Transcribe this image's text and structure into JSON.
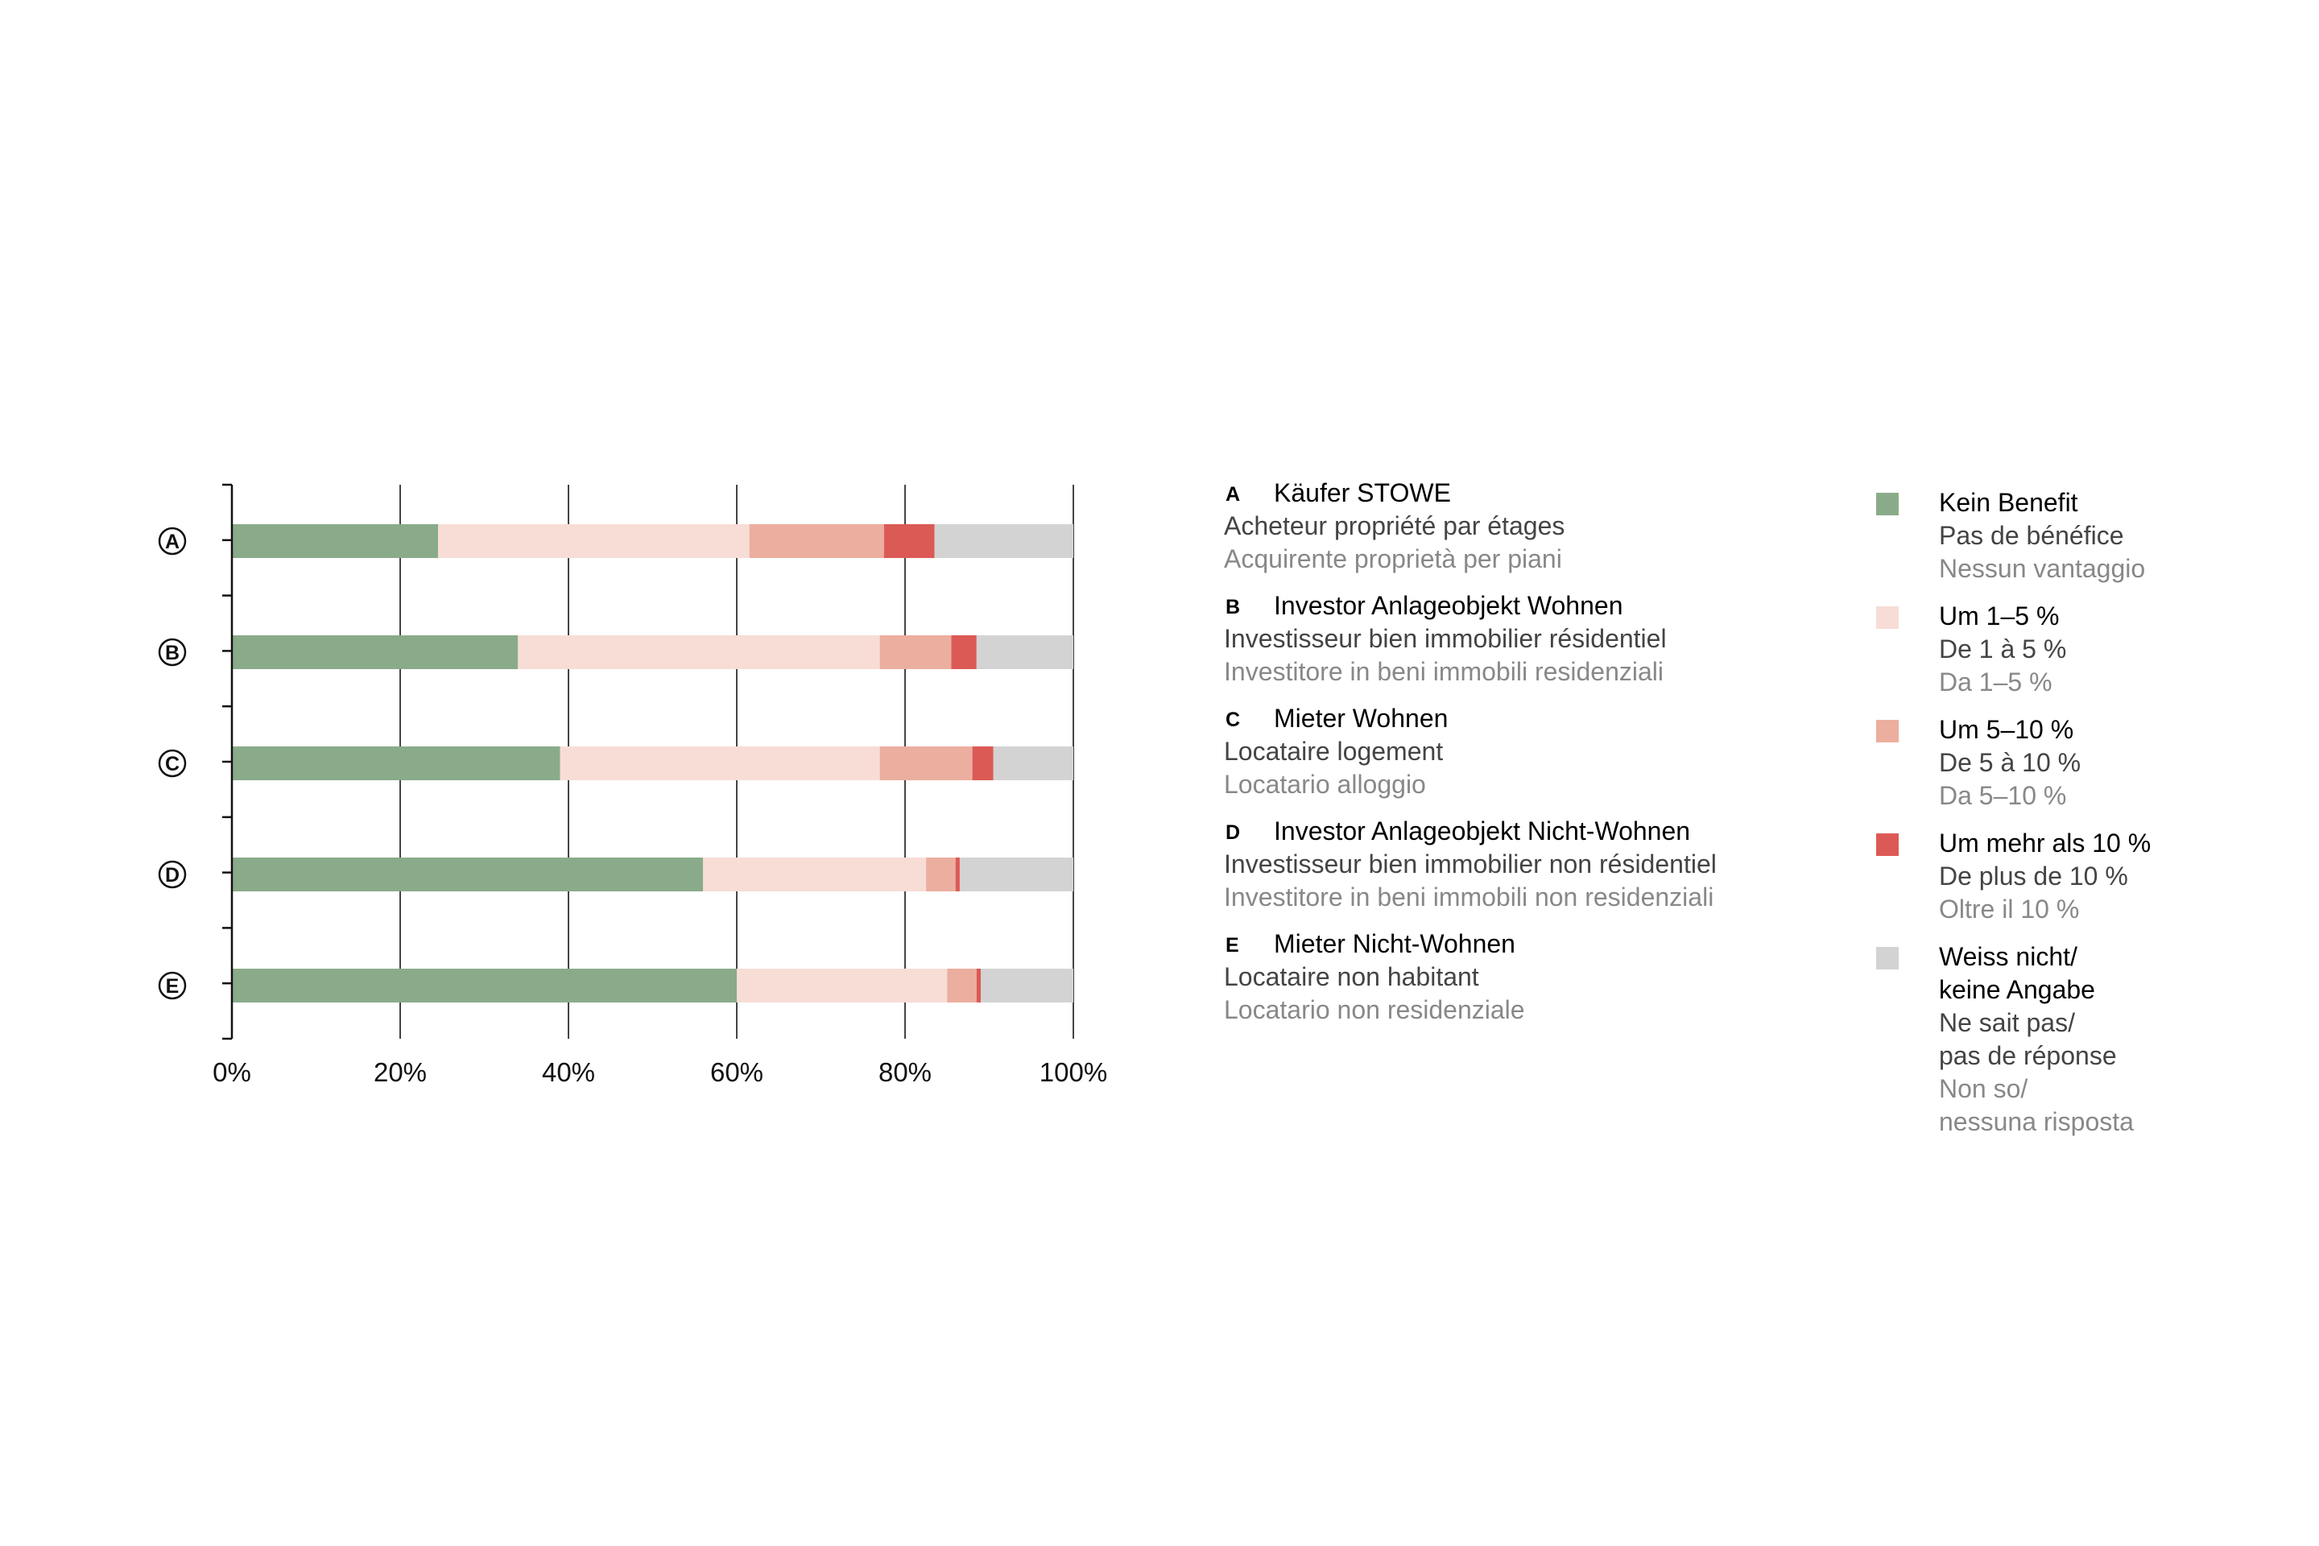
{
  "chart_data": {
    "type": "bar",
    "orientation": "horizontal",
    "stacked": true,
    "categories": [
      "A",
      "B",
      "C",
      "D",
      "E"
    ],
    "series": [
      {
        "name": "Kein Benefit",
        "color": "#8aab8a",
        "values": [
          24.5,
          34.0,
          39.0,
          56.0,
          60.0
        ]
      },
      {
        "name": "Um 1–5 %",
        "color": "#f7ddd6",
        "values": [
          37.0,
          43.0,
          38.0,
          26.5,
          25.0
        ]
      },
      {
        "name": "Um 5–10 %",
        "color": "#ecae9f",
        "values": [
          16.0,
          8.5,
          11.0,
          3.5,
          3.5
        ]
      },
      {
        "name": "Um mehr als 10 %",
        "color": "#dc5a55",
        "values": [
          6.0,
          3.0,
          2.5,
          0.5,
          0.5
        ]
      },
      {
        "name": "Weiss nicht/keine Angabe",
        "color": "#d3d3d3",
        "values": [
          16.5,
          11.5,
          9.5,
          13.5,
          11.0
        ]
      }
    ],
    "xlim": [
      0,
      100
    ],
    "xticks": [
      "0%",
      "20%",
      "40%",
      "60%",
      "80%",
      "100%"
    ],
    "grid": true,
    "legend_position": "right"
  },
  "groups": [
    {
      "letter": "A",
      "de": "Käufer STOWE",
      "fr": "Acheteur propriété par étages",
      "it": "Acquirente proprietà per piani"
    },
    {
      "letter": "B",
      "de": "Investor Anlageobjekt Wohnen",
      "fr": "Investisseur bien immobilier résidentiel",
      "it": "Investitore in beni immobili residenziali"
    },
    {
      "letter": "C",
      "de": "Mieter Wohnen",
      "fr": "Locataire logement",
      "it": "Locatario alloggio"
    },
    {
      "letter": "D",
      "de": "Investor Anlageobjekt Nicht-Wohnen",
      "fr": "Investisseur bien immobilier non résidentiel",
      "it": "Investitore in beni immobili non residenziali"
    },
    {
      "letter": "E",
      "de": "Mieter Nicht-Wohnen",
      "fr": "Locataire non habitant",
      "it": "Locatario non residenziale"
    }
  ],
  "legend": [
    {
      "color": "#8aab8a",
      "de": [
        "Kein Benefit"
      ],
      "fr": [
        "Pas de bénéfice"
      ],
      "it": [
        "Nessun vantaggio"
      ]
    },
    {
      "color": "#f7ddd6",
      "de": [
        "Um 1–5 %"
      ],
      "fr": [
        "De 1 à 5 %"
      ],
      "it": [
        "Da 1–5 %"
      ]
    },
    {
      "color": "#ecae9f",
      "de": [
        "Um 5–10 %"
      ],
      "fr": [
        "De 5 à 10 %"
      ],
      "it": [
        "Da 5–10 %"
      ]
    },
    {
      "color": "#dc5a55",
      "de": [
        "Um mehr als 10 %"
      ],
      "fr": [
        "De plus de 10 %"
      ],
      "it": [
        "Oltre il 10 %"
      ]
    },
    {
      "color": "#d3d3d3",
      "de": [
        "Weiss nicht/",
        "keine Angabe"
      ],
      "fr": [
        "Ne sait pas/",
        "pas de réponse"
      ],
      "it": [
        "Non so/",
        "nessuna risposta"
      ]
    }
  ]
}
